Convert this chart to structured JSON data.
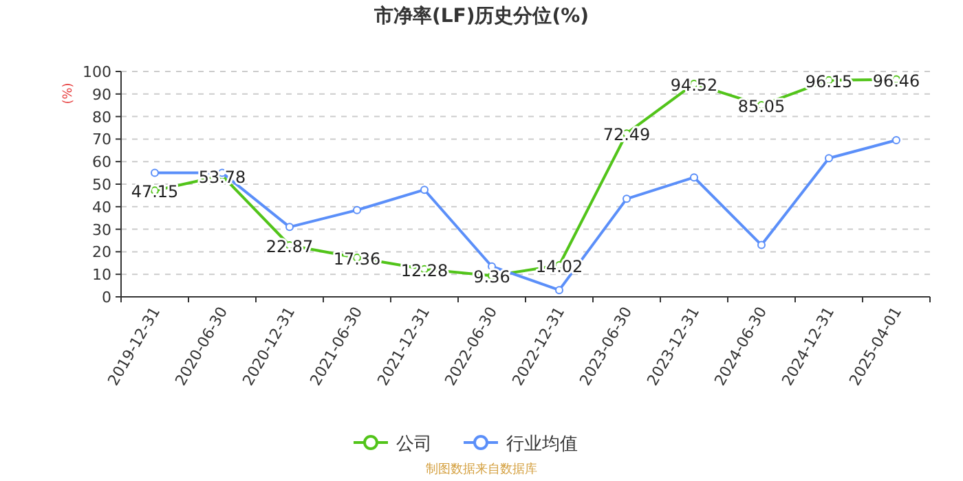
{
  "chart_data": {
    "type": "line",
    "title": "市净率(LF)历史分位(%)",
    "ylabel": "(%)",
    "categories": [
      "2019-12-31",
      "2020-06-30",
      "2020-12-31",
      "2021-06-30",
      "2021-12-31",
      "2022-06-30",
      "2022-12-31",
      "2023-06-30",
      "2023-12-31",
      "2024-06-30",
      "2024-12-31",
      "2025-04-01"
    ],
    "series": [
      {
        "name": "公司",
        "color": "#52c41a",
        "values": [
          47.15,
          53.78,
          22.87,
          17.36,
          12.28,
          9.36,
          14.02,
          72.49,
          94.52,
          85.05,
          96.15,
          96.46
        ],
        "value_labels": [
          "47.15",
          "53.78",
          "22.87",
          "17.36",
          "12.28",
          "9.36",
          "14.02",
          "72.49",
          "94.52",
          "85.05",
          "96.15",
          "96.46"
        ]
      },
      {
        "name": "行业均值",
        "color": "#5b8ff9",
        "values": [
          55,
          55,
          31,
          38.5,
          47.5,
          13.5,
          3,
          43.5,
          53,
          23,
          61.5,
          69.5
        ]
      }
    ],
    "ylim": [
      0,
      100
    ],
    "yticks": [
      0,
      10,
      20,
      30,
      40,
      50,
      60,
      70,
      80,
      90,
      100
    ],
    "grid": "y",
    "legend": "bottom",
    "marker": "circle",
    "line_style": "solid",
    "annotations": [
      "制图数据来自数据库"
    ]
  }
}
